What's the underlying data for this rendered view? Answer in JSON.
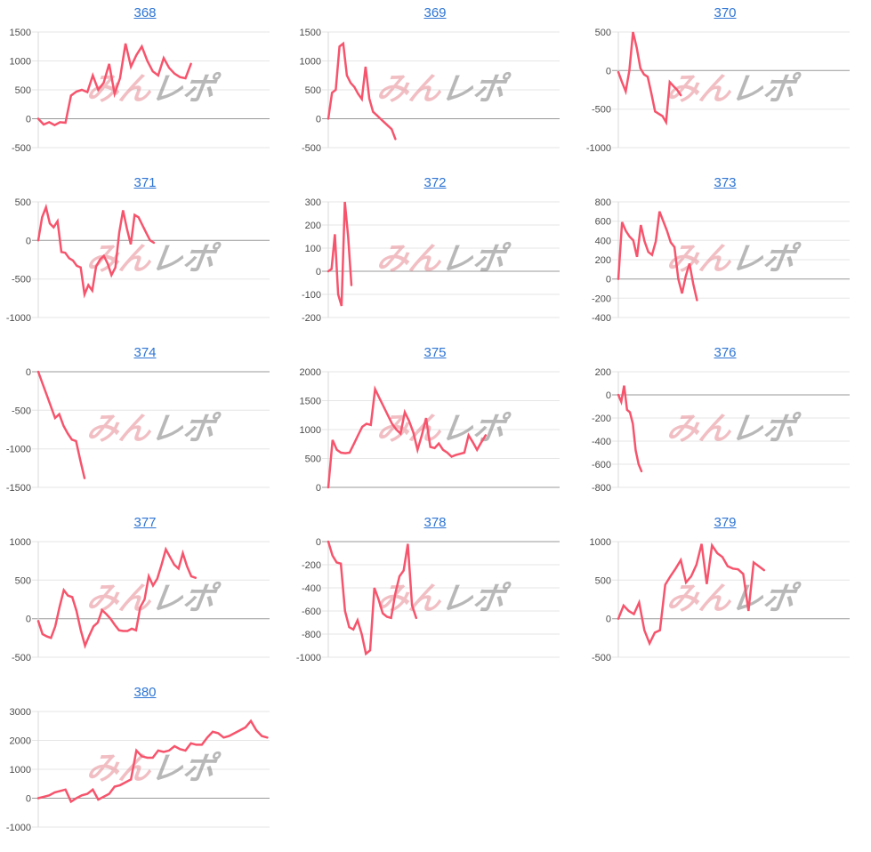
{
  "page": {
    "background": "#ffffff"
  },
  "colors": {
    "line": "#f6546c",
    "grid": "#e6e6e6",
    "zero_line": "#999999",
    "axis_line": "#d9d9d9",
    "tick_label": "#4d4d4d",
    "link": "#2e75d4",
    "watermark_pink": "rgba(228,125,136,0.5)",
    "watermark_gray": "rgba(125,125,125,0.55)"
  },
  "watermark": {
    "text_pink": "みん",
    "text_gray": "レポ"
  },
  "chart_data": [
    {
      "type": "line",
      "title": "368",
      "ylim": [
        -500,
        1500
      ],
      "yticks": [
        1500,
        1000,
        500,
        0,
        -500
      ],
      "span": 0.66,
      "values": [
        0,
        -100,
        -60,
        -110,
        -60,
        -70,
        400,
        470,
        500,
        460,
        750,
        500,
        620,
        950,
        430,
        700,
        1300,
        900,
        1100,
        1250,
        1000,
        820,
        750,
        1050,
        880,
        780,
        720,
        700,
        950
      ]
    },
    {
      "type": "line",
      "title": "369",
      "ylim": [
        -500,
        1500
      ],
      "yticks": [
        1500,
        1000,
        500,
        0,
        -500
      ],
      "span": 0.29,
      "values": [
        0,
        450,
        500,
        1250,
        1300,
        750,
        620,
        550,
        430,
        340,
        900,
        350,
        120,
        60,
        0,
        -60,
        -120,
        -180,
        -350
      ]
    },
    {
      "type": "line",
      "title": "370",
      "ylim": [
        -1000,
        500
      ],
      "yticks": [
        500,
        0,
        -500,
        -1000
      ],
      "span": 0.27,
      "values": [
        -20,
        -150,
        -270,
        0,
        500,
        300,
        30,
        -50,
        -80,
        -300,
        -530,
        -560,
        -590,
        -670,
        -150,
        -200,
        -250,
        -320
      ]
    },
    {
      "type": "line",
      "title": "371",
      "ylim": [
        -1000,
        500
      ],
      "yticks": [
        500,
        0,
        -500,
        -1000
      ],
      "span": 0.5,
      "values": [
        0,
        300,
        430,
        220,
        170,
        250,
        -150,
        -160,
        -230,
        -260,
        -330,
        -350,
        -700,
        -580,
        -650,
        -340,
        -250,
        -200,
        -300,
        -450,
        -350,
        100,
        390,
        150,
        -50,
        330,
        300,
        200,
        100,
        0,
        -30
      ]
    },
    {
      "type": "line",
      "title": "372",
      "ylim": [
        -200,
        300
      ],
      "yticks": [
        300,
        200,
        100,
        0,
        -100,
        -200
      ],
      "span": 0.1,
      "values": [
        0,
        10,
        160,
        -100,
        -150,
        300,
        150,
        -60
      ]
    },
    {
      "type": "line",
      "title": "373",
      "ylim": [
        -400,
        800
      ],
      "yticks": [
        800,
        600,
        400,
        200,
        0,
        -200,
        -400
      ],
      "span": 0.34,
      "values": [
        0,
        590,
        500,
        440,
        400,
        230,
        560,
        390,
        280,
        250,
        390,
        700,
        600,
        500,
        380,
        330,
        0,
        -150,
        30,
        160,
        -50,
        -220
      ]
    },
    {
      "type": "line",
      "title": "374",
      "ylim": [
        -1500,
        0
      ],
      "yticks": [
        0,
        -500,
        -1000,
        -1500
      ],
      "span": 0.2,
      "values": [
        0,
        -150,
        -300,
        -450,
        -600,
        -550,
        -700,
        -800,
        -880,
        -900,
        -1150,
        -1380
      ]
    },
    {
      "type": "line",
      "title": "375",
      "ylim": [
        0,
        2000
      ],
      "yticks": [
        2000,
        1500,
        1000,
        500,
        0
      ],
      "span": 0.68,
      "values": [
        0,
        820,
        650,
        600,
        590,
        600,
        750,
        900,
        1050,
        1100,
        1080,
        1700,
        1550,
        1400,
        1250,
        1100,
        1000,
        930,
        1300,
        1150,
        950,
        650,
        900,
        1200,
        700,
        680,
        760,
        650,
        600,
        530,
        560,
        580,
        600,
        900,
        780,
        650,
        780,
        900
      ]
    },
    {
      "type": "line",
      "title": "376",
      "ylim": [
        -800,
        200
      ],
      "yticks": [
        200,
        0,
        -200,
        -400,
        -600,
        -800
      ],
      "span": 0.1,
      "values": [
        0,
        -60,
        80,
        -130,
        -150,
        -250,
        -480,
        -600,
        -660
      ]
    },
    {
      "type": "line",
      "title": "377",
      "ylim": [
        -500,
        1000
      ],
      "yticks": [
        1000,
        500,
        0,
        -500
      ],
      "span": 0.68,
      "values": [
        -30,
        -200,
        -230,
        -250,
        -100,
        150,
        370,
        300,
        280,
        100,
        -150,
        -350,
        -220,
        -100,
        -50,
        110,
        60,
        0,
        -80,
        -150,
        -160,
        -160,
        -130,
        -150,
        150,
        250,
        550,
        430,
        520,
        700,
        900,
        800,
        700,
        650,
        850,
        680,
        550,
        530
      ]
    },
    {
      "type": "line",
      "title": "378",
      "ylim": [
        -1000,
        0
      ],
      "yticks": [
        0,
        -200,
        -400,
        -600,
        -800,
        -1000
      ],
      "span": 0.38,
      "values": [
        0,
        -120,
        -180,
        -190,
        -600,
        -740,
        -760,
        -680,
        -800,
        -970,
        -940,
        -400,
        -500,
        -620,
        -650,
        -660,
        -450,
        -300,
        -250,
        -20,
        -550,
        -660
      ]
    },
    {
      "type": "line",
      "title": "379",
      "ylim": [
        -500,
        1000
      ],
      "yticks": [
        1000,
        500,
        0,
        -500
      ],
      "span": 0.63,
      "values": [
        0,
        170,
        100,
        60,
        210,
        -150,
        -320,
        -180,
        -150,
        440,
        550,
        650,
        760,
        470,
        550,
        700,
        970,
        450,
        950,
        850,
        800,
        680,
        650,
        640,
        580,
        100,
        730,
        680,
        630
      ]
    },
    {
      "type": "line",
      "title": "380",
      "ylim": [
        -1000,
        3000
      ],
      "yticks": [
        3000,
        2000,
        1000,
        0,
        -1000
      ],
      "span": 0.99,
      "values": [
        0,
        50,
        100,
        200,
        250,
        300,
        -120,
        0,
        100,
        150,
        300,
        -50,
        50,
        150,
        400,
        450,
        550,
        650,
        1650,
        1450,
        1400,
        1400,
        1650,
        1600,
        1650,
        1800,
        1700,
        1650,
        1900,
        1850,
        1850,
        2100,
        2300,
        2250,
        2100,
        2150,
        2250,
        2350,
        2450,
        2670,
        2350,
        2150,
        2100
      ]
    }
  ]
}
